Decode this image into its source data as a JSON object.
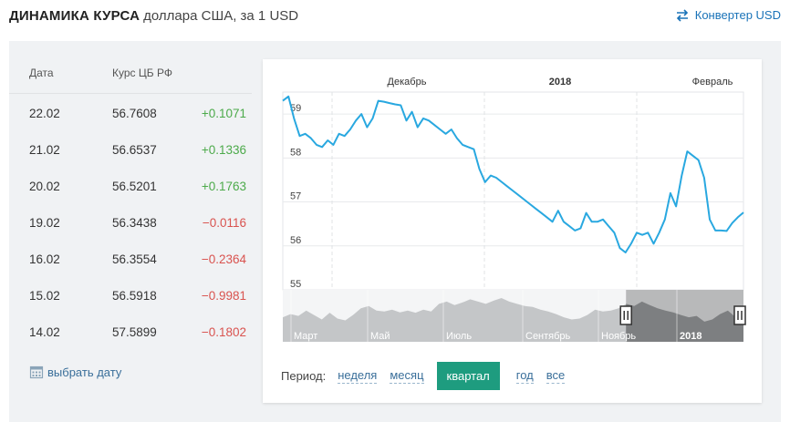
{
  "header": {
    "title_main": "ДИНАМИКА КУРСА",
    "title_sub": "доллара США, за 1 USD",
    "converter_label": "Конвертер USD"
  },
  "table": {
    "col_date": "Дата",
    "col_rate": "Курс ЦБ РФ",
    "rows": [
      {
        "date": "22.02",
        "rate": "56.7608",
        "change": "+0.1071",
        "dir": "pos"
      },
      {
        "date": "21.02",
        "rate": "56.6537",
        "change": "+0.1336",
        "dir": "pos"
      },
      {
        "date": "20.02",
        "rate": "56.5201",
        "change": "+0.1763",
        "dir": "pos"
      },
      {
        "date": "19.02",
        "rate": "56.3438",
        "change": "−0.0116",
        "dir": "neg"
      },
      {
        "date": "16.02",
        "rate": "56.3554",
        "change": "−0.2364",
        "dir": "neg"
      },
      {
        "date": "15.02",
        "rate": "56.5918",
        "change": "−0.9981",
        "dir": "neg"
      },
      {
        "date": "14.02",
        "rate": "57.5899",
        "change": "−0.1802",
        "dir": "neg"
      }
    ],
    "pick_date_label": "выбрать дату"
  },
  "period": {
    "label": "Период:",
    "options": [
      "неделя",
      "месяц",
      "квартал",
      "год",
      "все"
    ],
    "active": "квартал"
  },
  "colors": {
    "line": "#29a8e0",
    "active_period": "#1e9c7f",
    "positive": "#4caa4a",
    "negative": "#d9534f"
  },
  "chart_data": {
    "type": "line",
    "top_labels": [
      "Декабрь",
      "2018",
      "Февраль"
    ],
    "yticks": [
      "59",
      "58",
      "57",
      "56",
      "55"
    ],
    "ylim": [
      55,
      59.5
    ],
    "series": [
      {
        "values": [
          59.3,
          59.4,
          58.9,
          58.5,
          58.55,
          58.45,
          58.3,
          58.25,
          58.4,
          58.3,
          58.55,
          58.5,
          58.65,
          58.85,
          59.0,
          58.7,
          58.9,
          59.3,
          59.28,
          59.25,
          59.22,
          59.2,
          58.85,
          59.05,
          58.7,
          58.9,
          58.85,
          58.75,
          58.65,
          58.55,
          58.65,
          58.45,
          58.3,
          58.25,
          58.2,
          57.75,
          57.45,
          57.6,
          57.55,
          57.45,
          57.35,
          57.25,
          57.15,
          57.05,
          56.95,
          56.85,
          56.75,
          56.65,
          56.55,
          56.8,
          56.55,
          56.45,
          56.35,
          56.4,
          56.75,
          56.55,
          56.55,
          56.6,
          56.45,
          56.3,
          55.95,
          55.85,
          56.05,
          56.3,
          56.25,
          56.3,
          56.05,
          56.3,
          56.6,
          57.2,
          56.9,
          57.6,
          58.15,
          58.05,
          57.95,
          57.55,
          56.6,
          56.35,
          56.35,
          56.34,
          56.52,
          56.65,
          56.76
        ]
      }
    ],
    "navigator_labels": [
      "Март",
      "Май",
      "Июль",
      "Сентябрь",
      "Ноябрь",
      "2018"
    ],
    "navigator_values": [
      0.55,
      0.62,
      0.58,
      0.7,
      0.6,
      0.5,
      0.65,
      0.52,
      0.48,
      0.6,
      0.75,
      0.8,
      0.7,
      0.68,
      0.72,
      0.66,
      0.7,
      0.65,
      0.72,
      0.68,
      0.85,
      0.9,
      0.82,
      0.88,
      0.95,
      0.9,
      0.85,
      0.92,
      0.98,
      0.9,
      0.85,
      0.8,
      0.78,
      0.72,
      0.68,
      0.62,
      0.55,
      0.5,
      0.52,
      0.6,
      0.72,
      0.68,
      0.7,
      0.75,
      0.85,
      0.8,
      0.9,
      0.82,
      0.75,
      0.7,
      0.66,
      0.6,
      0.55,
      0.58,
      0.45,
      0.5,
      0.62,
      0.7,
      0.55,
      0.72
    ],
    "navigator_window": [
      0.745,
      1.0
    ]
  }
}
